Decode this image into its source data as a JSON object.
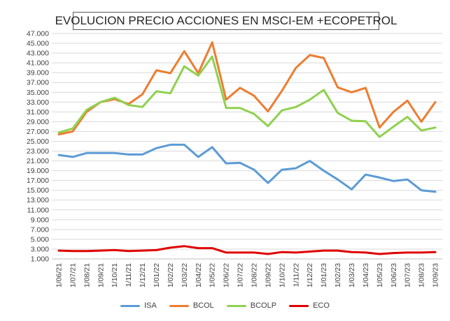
{
  "chart_data": {
    "type": "line",
    "title": "EVOLUCION PRECIO ACCIONES EN MSCI-EM +ECOPETROL",
    "xlabel": "",
    "ylabel": "",
    "ylim": [
      1000,
      47000
    ],
    "ytick_values": [
      1000,
      3000,
      5000,
      7000,
      9000,
      11000,
      13000,
      15000,
      17000,
      19000,
      21000,
      23000,
      25000,
      27000,
      29000,
      31000,
      33000,
      35000,
      37000,
      39000,
      41000,
      43000,
      45000,
      47000
    ],
    "ytick_labels": [
      "1.000",
      "3.000",
      "5.000",
      "7.000",
      "9.000",
      "11.000",
      "13.000",
      "15.000",
      "17.000",
      "19.000",
      "21.000",
      "23.000",
      "25.000",
      "27.000",
      "29.000",
      "31.000",
      "33.000",
      "35.000",
      "37.000",
      "39.000",
      "41.000",
      "43.000",
      "45.000",
      "47.000"
    ],
    "grid": true,
    "legend_position": "bottom",
    "categories": [
      "1/06/21",
      "1/07/21",
      "1/08/21",
      "1/09/21",
      "1/10/21",
      "1/11/21",
      "1/12/21",
      "1/01/22",
      "1/02/22",
      "1/03/22",
      "1/04/22",
      "1/05/22",
      "1/06/22",
      "1/07/22",
      "1/08/22",
      "1/09/22",
      "1/10/22",
      "1/11/22",
      "1/12/22",
      "1/01/23",
      "1/02/23",
      "1/03/23",
      "1/04/23",
      "1/05/23",
      "1/06/23",
      "1/07/23",
      "1/08/23",
      "1/09/23"
    ],
    "series": [
      {
        "name": "ISA",
        "color": "#5B9BD5",
        "values": [
          22200,
          21800,
          22600,
          22600,
          22600,
          22300,
          22300,
          23600,
          24300,
          24300,
          21800,
          23800,
          20500,
          20600,
          19200,
          16500,
          19200,
          19500,
          21000,
          19000,
          17200,
          15200,
          18200,
          17600,
          16900,
          17200,
          15000,
          14700
        ]
      },
      {
        "name": "BCOL",
        "color": "#ED7D31",
        "values": [
          26400,
          27000,
          31000,
          33000,
          33600,
          32600,
          34600,
          39500,
          38900,
          43400,
          38900,
          45200,
          33500,
          35900,
          34300,
          31100,
          35300,
          40000,
          42600,
          42000,
          36000,
          35000,
          35900,
          27800,
          31000,
          33300,
          29000,
          33000
        ]
      },
      {
        "name": "BCOLP",
        "color": "#8FD14F",
        "values": [
          26800,
          27600,
          31400,
          33000,
          33900,
          32400,
          32000,
          35200,
          34800,
          40300,
          38400,
          42300,
          31800,
          31800,
          30600,
          28100,
          31300,
          32000,
          33500,
          35500,
          30800,
          29200,
          29100,
          25900,
          28000,
          30000,
          27200,
          27800
        ]
      },
      {
        "name": "ECO",
        "color": "#E00000",
        "values": [
          2700,
          2600,
          2600,
          2700,
          2800,
          2600,
          2700,
          2800,
          3300,
          3600,
          3200,
          3200,
          2300,
          2300,
          2300,
          2000,
          2400,
          2300,
          2500,
          2700,
          2700,
          2400,
          2300,
          2000,
          2200,
          2300,
          2300,
          2400
        ]
      }
    ]
  }
}
